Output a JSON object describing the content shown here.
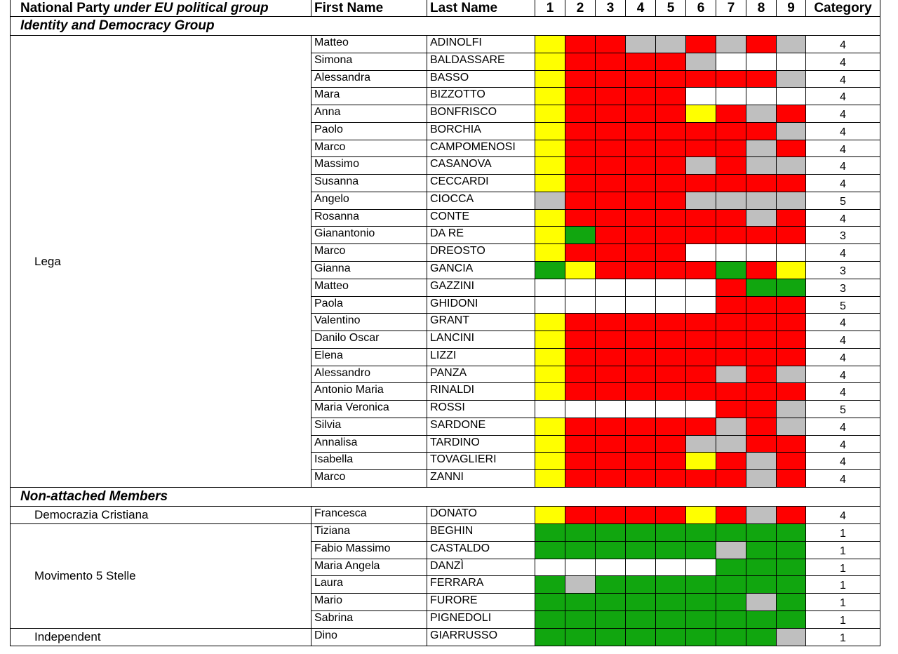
{
  "header": {
    "party": "National Party",
    "party_italic": "under EU political group",
    "first_name": "First Name",
    "last_name": "Last Name",
    "votes": [
      1,
      2,
      3,
      4,
      5,
      6,
      7,
      8,
      9
    ],
    "category": "Category"
  },
  "palette": {
    "yellow": "#ffff00",
    "red": "#ff0000",
    "gray": "#bfbfbf",
    "green": "#11a60f",
    "white": "#ffffff"
  },
  "sections": [
    {
      "title": "Identity and Democracy Group",
      "parties": [
        {
          "name": "Lega",
          "members": [
            {
              "first": "Matteo",
              "last": "ADINOLFI",
              "votes": [
                "yellow",
                "red",
                "red",
                "gray",
                "gray",
                "red",
                "gray",
                "red",
                "gray"
              ],
              "category": 4
            },
            {
              "first": "Simona",
              "last": "BALDASSARE",
              "votes": [
                "yellow",
                "red",
                "red",
                "red",
                "red",
                "gray",
                "white",
                "white",
                "white"
              ],
              "category": 4
            },
            {
              "first": "Alessandra",
              "last": "BASSO",
              "votes": [
                "yellow",
                "red",
                "red",
                "red",
                "red",
                "red",
                "red",
                "red",
                "gray"
              ],
              "category": 4
            },
            {
              "first": "Mara",
              "last": "BIZZOTTO",
              "votes": [
                "yellow",
                "red",
                "red",
                "red",
                "red",
                "white",
                "white",
                "white",
                "white"
              ],
              "category": 4
            },
            {
              "first": "Anna",
              "last": "BONFRISCO",
              "votes": [
                "yellow",
                "red",
                "red",
                "red",
                "red",
                "yellow",
                "red",
                "gray",
                "red"
              ],
              "category": 4
            },
            {
              "first": "Paolo",
              "last": "BORCHIA",
              "votes": [
                "yellow",
                "red",
                "red",
                "red",
                "red",
                "red",
                "red",
                "red",
                "gray"
              ],
              "category": 4
            },
            {
              "first": "Marco",
              "last": "CAMPOMENOSI",
              "votes": [
                "yellow",
                "red",
                "red",
                "red",
                "red",
                "red",
                "red",
                "gray",
                "red"
              ],
              "category": 4
            },
            {
              "first": "Massimo",
              "last": "CASANOVA",
              "votes": [
                "yellow",
                "red",
                "red",
                "red",
                "red",
                "gray",
                "red",
                "gray",
                "gray"
              ],
              "category": 4
            },
            {
              "first": "Susanna",
              "last": "CECCARDI",
              "votes": [
                "yellow",
                "red",
                "red",
                "red",
                "red",
                "red",
                "red",
                "red",
                "red"
              ],
              "category": 4
            },
            {
              "first": "Angelo",
              "last": "CIOCCA",
              "votes": [
                "gray",
                "red",
                "red",
                "red",
                "red",
                "gray",
                "gray",
                "gray",
                "gray"
              ],
              "category": 5
            },
            {
              "first": "Rosanna",
              "last": "CONTE",
              "votes": [
                "yellow",
                "red",
                "red",
                "red",
                "red",
                "red",
                "red",
                "gray",
                "red"
              ],
              "category": 4
            },
            {
              "first": "Gianantonio",
              "last": "DA RE",
              "votes": [
                "yellow",
                "green",
                "red",
                "red",
                "red",
                "red",
                "red",
                "red",
                "red"
              ],
              "category": 3
            },
            {
              "first": "Marco",
              "last": "DREOSTO",
              "votes": [
                "yellow",
                "red",
                "red",
                "red",
                "red",
                "white",
                "white",
                "white",
                "white"
              ],
              "category": 4
            },
            {
              "first": "Gianna",
              "last": "GANCIA",
              "votes": [
                "green",
                "yellow",
                "red",
                "red",
                "red",
                "red",
                "green",
                "red",
                "yellow"
              ],
              "category": 3
            },
            {
              "first": "Matteo",
              "last": "GAZZINI",
              "votes": [
                "white",
                "white",
                "white",
                "white",
                "white",
                "white",
                "red",
                "green",
                "green"
              ],
              "category": 3
            },
            {
              "first": "Paola",
              "last": "GHIDONI",
              "votes": [
                "white",
                "white",
                "white",
                "white",
                "white",
                "white",
                "red",
                "red",
                "red"
              ],
              "category": 5
            },
            {
              "first": "Valentino",
              "last": "GRANT",
              "votes": [
                "yellow",
                "red",
                "red",
                "red",
                "red",
                "red",
                "red",
                "red",
                "red"
              ],
              "category": 4
            },
            {
              "first": "Danilo Oscar",
              "last": "LANCINI",
              "votes": [
                "yellow",
                "red",
                "red",
                "red",
                "red",
                "red",
                "red",
                "red",
                "red"
              ],
              "category": 4
            },
            {
              "first": "Elena",
              "last": "LIZZI",
              "votes": [
                "yellow",
                "red",
                "red",
                "red",
                "red",
                "red",
                "red",
                "red",
                "red"
              ],
              "category": 4
            },
            {
              "first": "Alessandro",
              "last": "PANZA",
              "votes": [
                "yellow",
                "red",
                "red",
                "red",
                "red",
                "red",
                "gray",
                "red",
                "gray"
              ],
              "category": 4
            },
            {
              "first": "Antonio Maria",
              "last": "RINALDI",
              "votes": [
                "yellow",
                "red",
                "red",
                "red",
                "red",
                "red",
                "red",
                "red",
                "red"
              ],
              "category": 4
            },
            {
              "first": "Maria Veronica",
              "last": "ROSSI",
              "votes": [
                "white",
                "white",
                "white",
                "white",
                "white",
                "white",
                "red",
                "red",
                "gray"
              ],
              "category": 5
            },
            {
              "first": "Silvia",
              "last": "SARDONE",
              "votes": [
                "yellow",
                "red",
                "red",
                "red",
                "red",
                "red",
                "gray",
                "red",
                "gray"
              ],
              "category": 4
            },
            {
              "first": "Annalisa",
              "last": "TARDINO",
              "votes": [
                "yellow",
                "red",
                "red",
                "red",
                "red",
                "gray",
                "gray",
                "red",
                "red"
              ],
              "category": 4
            },
            {
              "first": "Isabella",
              "last": "TOVAGLIERI",
              "votes": [
                "yellow",
                "red",
                "red",
                "red",
                "red",
                "yellow",
                "red",
                "gray",
                "red"
              ],
              "category": 4
            },
            {
              "first": "Marco",
              "last": "ZANNI",
              "votes": [
                "yellow",
                "red",
                "red",
                "red",
                "red",
                "red",
                "red",
                "gray",
                "red"
              ],
              "category": 4
            }
          ]
        }
      ]
    },
    {
      "title": "Non-attached Members",
      "parties": [
        {
          "name": "Democrazia Cristiana",
          "members": [
            {
              "first": "Francesca",
              "last": "DONATO",
              "votes": [
                "yellow",
                "red",
                "red",
                "red",
                "red",
                "yellow",
                "red",
                "gray",
                "red"
              ],
              "category": 4
            }
          ]
        },
        {
          "name": "Movimento 5 Stelle",
          "members": [
            {
              "first": "Tiziana",
              "last": "BEGHIN",
              "votes": [
                "green",
                "green",
                "green",
                "green",
                "green",
                "green",
                "green",
                "green",
                "green"
              ],
              "category": 1
            },
            {
              "first": "Fabio Massimo",
              "last": "CASTALDO",
              "votes": [
                "green",
                "green",
                "green",
                "green",
                "green",
                "green",
                "gray",
                "green",
                "green"
              ],
              "category": 1
            },
            {
              "first": "Maria Angela",
              "last": "DANZÌ",
              "votes": [
                "white",
                "white",
                "white",
                "white",
                "white",
                "white",
                "green",
                "green",
                "green"
              ],
              "category": 1
            },
            {
              "first": "Laura",
              "last": "FERRARA",
              "votes": [
                "green",
                "gray",
                "green",
                "green",
                "green",
                "green",
                "green",
                "green",
                "green"
              ],
              "category": 1
            },
            {
              "first": "Mario",
              "last": "FURORE",
              "votes": [
                "green",
                "green",
                "green",
                "green",
                "green",
                "green",
                "green",
                "gray",
                "green"
              ],
              "category": 1
            },
            {
              "first": "Sabrina",
              "last": "PIGNEDOLI",
              "votes": [
                "green",
                "green",
                "green",
                "green",
                "green",
                "green",
                "green",
                "green",
                "green"
              ],
              "category": 1
            }
          ]
        },
        {
          "name": "Independent",
          "members": [
            {
              "first": "Dino",
              "last": "GIARRUSSO",
              "votes": [
                "green",
                "green",
                "green",
                "green",
                "green",
                "green",
                "green",
                "green",
                "gray"
              ],
              "category": 1
            }
          ]
        }
      ]
    }
  ]
}
